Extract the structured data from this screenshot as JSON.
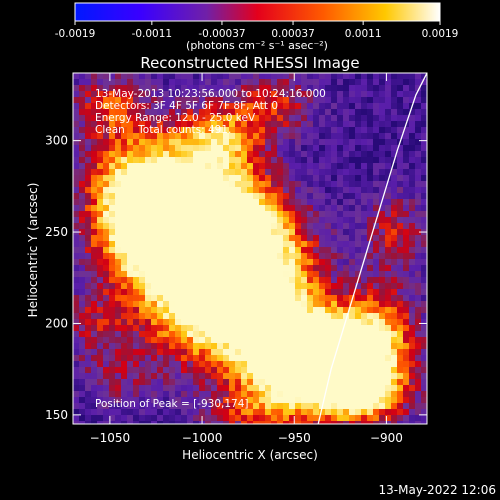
{
  "colorbar": {
    "tick_labels": [
      "-0.0019",
      "-0.0011",
      "-0.00037",
      "0.00037",
      "0.0011",
      "0.0019"
    ],
    "tick_values": [
      -0.0019,
      -0.0011,
      -0.00037,
      0.00037,
      0.0011,
      0.0019
    ],
    "range": [
      -0.0019,
      0.0019
    ],
    "units_label": "(photons cm⁻² s⁻¹ asec⁻²)",
    "colors": [
      "#0018ff",
      "#5a00d8",
      "#7a2aa0",
      "#e4001c",
      "#ff7a00",
      "#ffe600",
      "#ffffff"
    ]
  },
  "chart_data": {
    "type": "heatmap",
    "title": "Reconstructed RHESSI Image",
    "xlabel": "Heliocentric X (arcsec)",
    "ylabel": "Heliocentric Y (arcsec)",
    "xlim": [
      -1070,
      -878
    ],
    "ylim": [
      145,
      337
    ],
    "x_ticks": [
      -1050,
      -1000,
      -950,
      -900
    ],
    "y_ticks": [
      150,
      200,
      250,
      300
    ],
    "x_tick_labels": [
      "−1050",
      "−1000",
      "−950",
      "−900"
    ],
    "y_tick_labels": [
      "150",
      "200",
      "250",
      "300"
    ],
    "limb_curve": [
      [
        -937,
        145
      ],
      [
        -930,
        175
      ],
      [
        -921,
        205
      ],
      [
        -912,
        235
      ],
      [
        -903,
        265
      ],
      [
        -894,
        295
      ],
      [
        -884,
        325
      ],
      [
        -878,
        337
      ]
    ],
    "peak": [
      -930,
      174
    ],
    "annotations": [
      "13-May-2013 10:23:56.000 to 10:24:16.000",
      "Detectors: 3F 4F 5F 6F 7F 8F, Att 0",
      "Energy Range: 12.0 - 25.0 keV",
      "Clean    Total counts: 491.",
      "Position of Peak = [-930,174]"
    ]
  },
  "footer": {
    "timestamp": "13-May-2022 12:06"
  }
}
